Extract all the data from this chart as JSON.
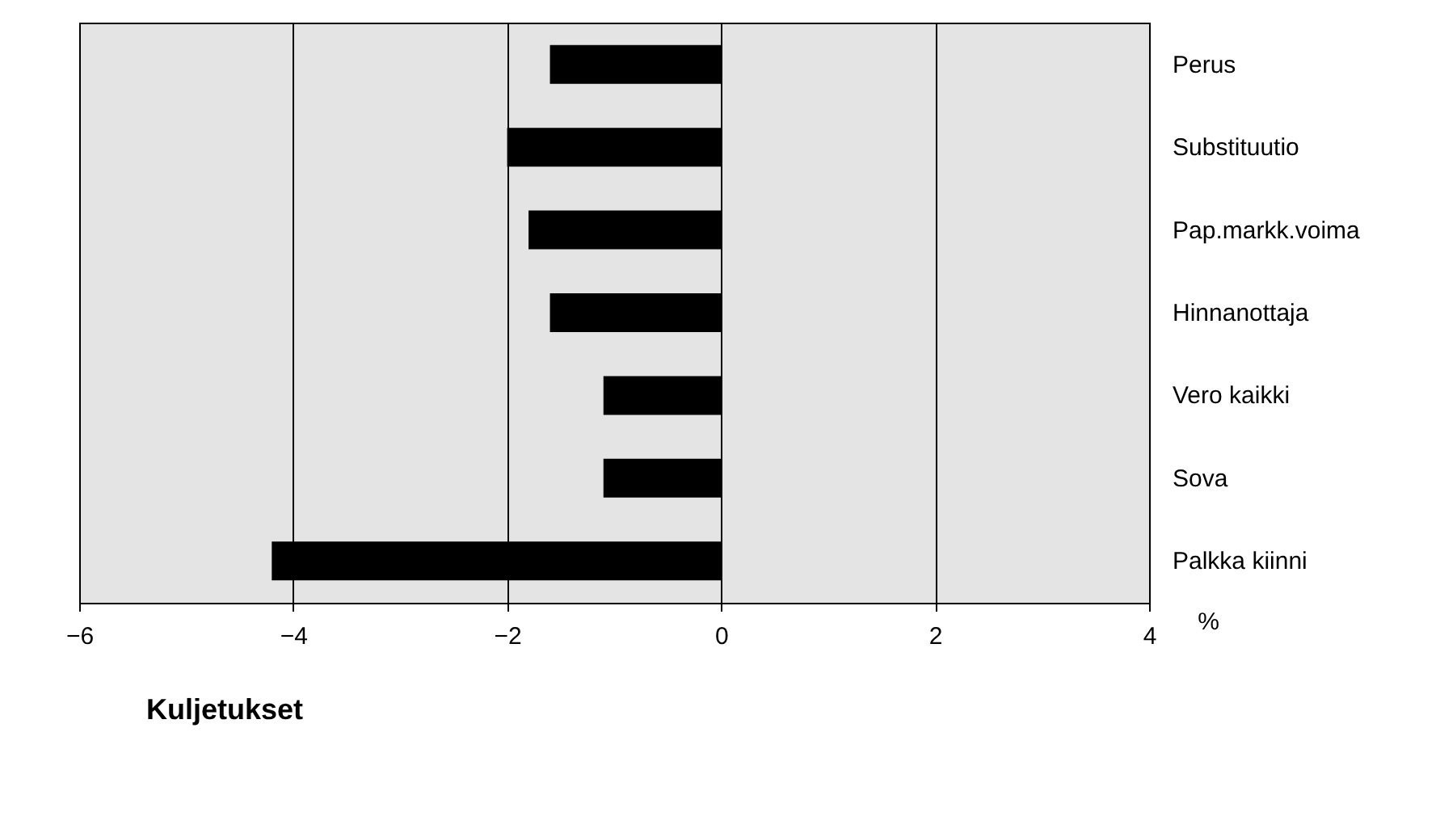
{
  "chart_data": {
    "type": "bar",
    "orientation": "horizontal",
    "title": "Kuljetukset",
    "xlabel": "%",
    "categories": [
      "Perus",
      "Substituutio",
      "Pap.markk.voima",
      "Hinnanottaja",
      "Vero kaikki",
      "Sova",
      "Palkka kiinni"
    ],
    "values": [
      -1.6,
      -2.0,
      -1.8,
      -1.6,
      -1.1,
      -1.1,
      -4.2
    ],
    "color": "#000000",
    "xlim": [
      -6,
      4
    ],
    "xticks": [
      -6,
      -4,
      -2,
      0,
      2,
      4
    ],
    "grid": "x"
  }
}
